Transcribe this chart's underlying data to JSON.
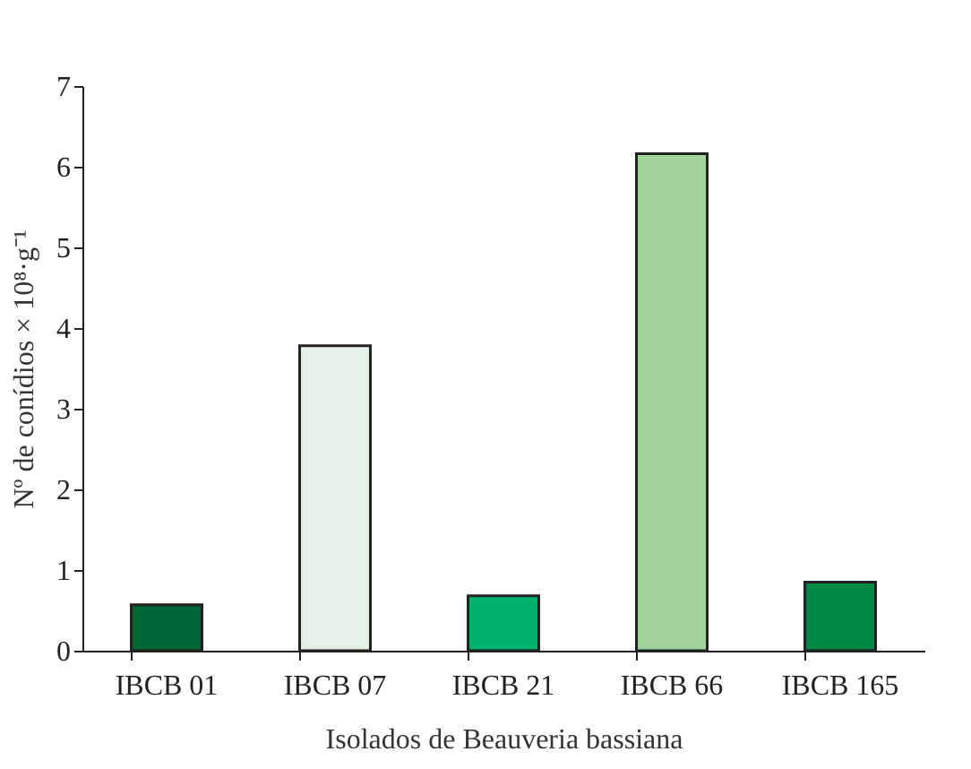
{
  "chart_data": {
    "type": "bar",
    "xlabel": "Isolados de Beauveria bassiana",
    "ylabel": "Nº de conídios × 10⁸·g⁻¹",
    "categories": [
      "IBCB 01",
      "IBCB 07",
      "IBCB 21",
      "IBCB 66",
      "IBCB 165"
    ],
    "values": [
      0.57,
      3.78,
      0.68,
      6.16,
      0.85
    ],
    "colors": [
      "#006633",
      "#e3f1e6",
      "#00b26b",
      "#a0d49c",
      "#008844"
    ],
    "ylim": [
      0,
      7
    ],
    "yticks": [
      0,
      1,
      2,
      3,
      4,
      5,
      6,
      7
    ],
    "grid": false
  }
}
